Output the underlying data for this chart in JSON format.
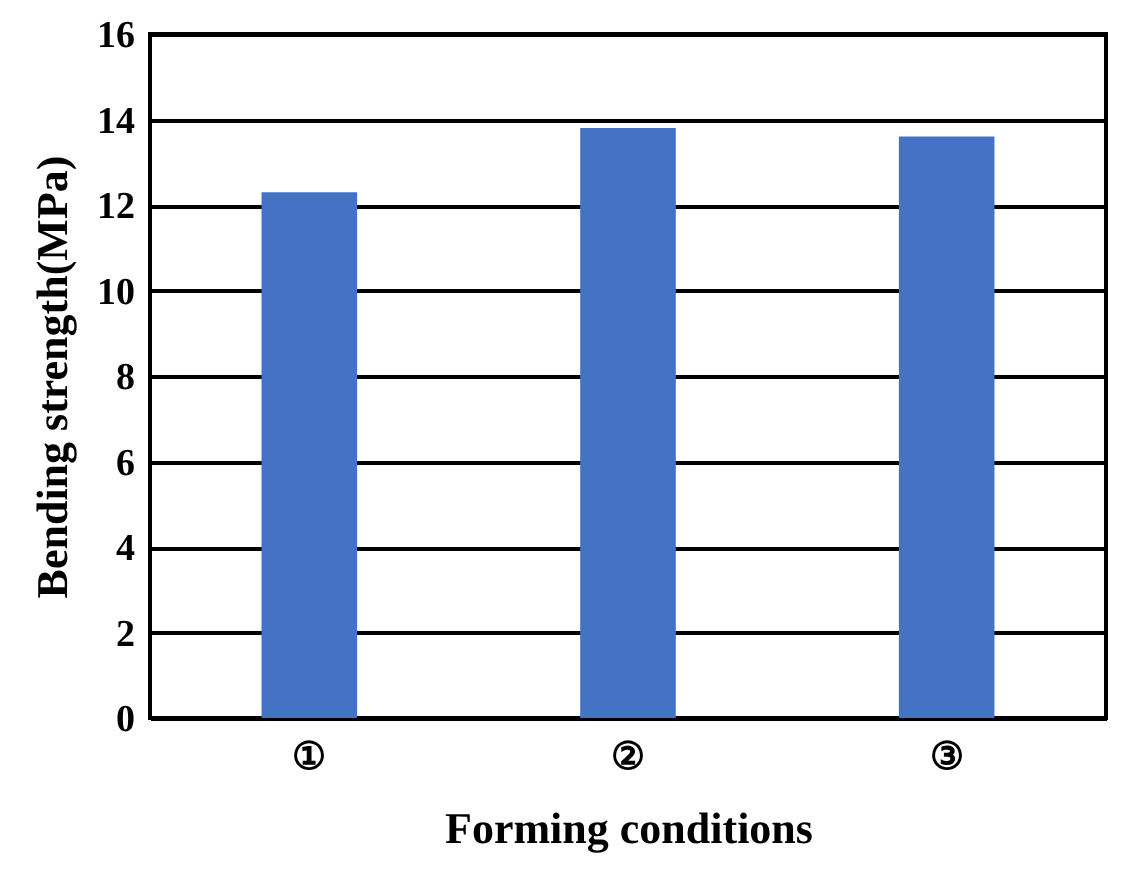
{
  "chart_data": {
    "type": "bar",
    "xlabel": "Forming conditions",
    "ylabel": "Bending strength(MPa)",
    "categories": [
      "①",
      "②",
      "③"
    ],
    "values": [
      12.3,
      13.8,
      13.6
    ],
    "color": "#4472c4",
    "ylim": [
      0,
      16
    ],
    "yticks": [
      0,
      2,
      4,
      6,
      8,
      10,
      12,
      14,
      16
    ],
    "grid": "y"
  }
}
